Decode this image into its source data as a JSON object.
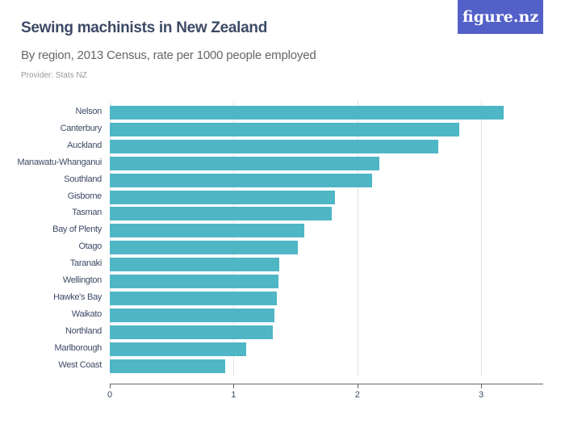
{
  "header": {
    "title": "Sewing machinists in New Zealand",
    "subtitle": "By region, 2013 Census, rate per 1000 people employed",
    "provider": "Provider: Stats NZ",
    "logo": "figure.nz",
    "logo_color": "#5360c8"
  },
  "chart_data": {
    "type": "bar",
    "orientation": "horizontal",
    "title": "Sewing machinists in New Zealand",
    "subtitle": "By region, 2013 Census, rate per 1000 people employed",
    "xlabel": "",
    "ylabel": "",
    "xlim": [
      0,
      3.5
    ],
    "xticks": [
      "0",
      "1",
      "2",
      "3"
    ],
    "grid": true,
    "bar_color": "#4fb6c5",
    "categories": [
      "Nelson",
      "Canterbury",
      "Auckland",
      "Manawatu-Whanganui",
      "Southland",
      "Gisborne",
      "Tasman",
      "Bay of Plenty",
      "Otago",
      "Taranaki",
      "Wellington",
      "Hawke's Bay",
      "Waikato",
      "Northland",
      "Marlborough",
      "West Coast"
    ],
    "values": [
      3.18,
      2.82,
      2.65,
      2.18,
      2.12,
      1.82,
      1.79,
      1.57,
      1.52,
      1.37,
      1.36,
      1.35,
      1.33,
      1.32,
      1.1,
      0.93
    ]
  }
}
